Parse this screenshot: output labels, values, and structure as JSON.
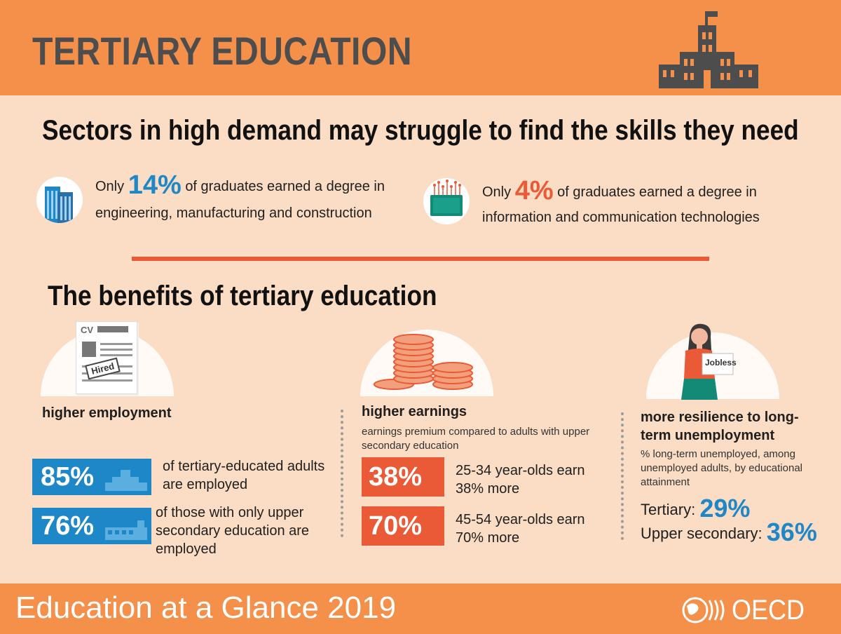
{
  "header": {
    "title": "TERTIARY EDUCATION"
  },
  "sectors": {
    "title": "Sectors in high demand may struggle to find the skills they need",
    "engineering": {
      "prefix": "Only",
      "pct": "14%",
      "line1_rest": "of graduates earned a degree in",
      "line2": "engineering, manufacturing and construction",
      "icon": "skyscraper-icon",
      "color": "#1e87c8"
    },
    "ict": {
      "prefix": "Only",
      "pct": "4%",
      "line1_rest": "of graduates earned a degree in",
      "line2": "information and communication technologies",
      "icon": "microchip-icon",
      "color": "#eb5a36"
    }
  },
  "benefits": {
    "title": "The benefits of tertiary education",
    "employment": {
      "heading": "higher employment",
      "cv_label": "CV",
      "stamp": "Hired",
      "rows": [
        {
          "pct": "85%",
          "line1": "of tertiary-educated adults",
          "line2": "are employed",
          "line3": ""
        },
        {
          "pct": "76%",
          "line1": "of those with only upper",
          "line2": "secondary education are",
          "line3": "employed"
        }
      ]
    },
    "earnings": {
      "heading": "higher earnings",
      "sub_line1": "earnings premium compared to adults with upper",
      "sub_line2": "secondary education",
      "rows": [
        {
          "pct": "38%",
          "line1": "25-34 year-olds earn",
          "line2": "38% more"
        },
        {
          "pct": "70%",
          "line1": "45-54 year-olds earn",
          "line2": "70% more"
        }
      ]
    },
    "resilience": {
      "heading_line1": "more resilience to long-",
      "heading_line2": "term unemployment",
      "sub_line1": "% long-term unemployed, among",
      "sub_line2": "unemployed adults, by educational",
      "sub_line3": "attainment",
      "sign": "Jobless",
      "tertiary_label": "Tertiary:",
      "tertiary_pct": "29%",
      "upper_label": "Upper secondary:",
      "upper_pct": "36%"
    }
  },
  "footer": {
    "title": "Education at a Glance 2019",
    "brand": "OECD"
  },
  "colors": {
    "header": "#f4904a",
    "background": "#fbdcc4",
    "blue": "#1e87c8",
    "orange": "#eb5a36"
  }
}
